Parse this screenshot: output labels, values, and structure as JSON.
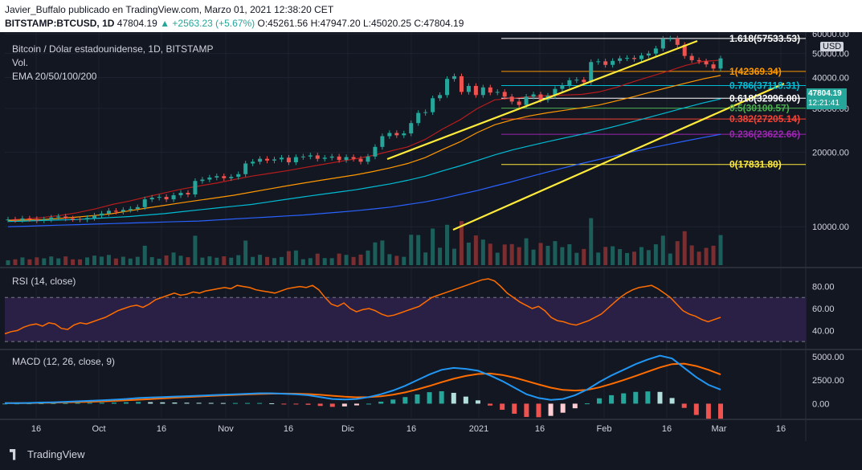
{
  "header": {
    "publisher_line": "Javier_Buffalo publicado en TradingView.com, Marzo 01, 2021 12:38:20 CET",
    "symbol": "BITSTAMP:BTCUSD, 1D",
    "price": "47804.19",
    "change": "▲ +2563.23 (+5.67%)",
    "ohlc": "O:45261.56 H:47947.20 L:45020.25 C:47804.19"
  },
  "legend": {
    "title": "Bitcoin / Dólar estadounidense, 1D, BITSTAMP",
    "vol": "Vol.",
    "ema": "EMA 20/50/100/200",
    "rsi": "RSI (14, close)",
    "macd": "MACD (12, 26, close, 9)"
  },
  "price_tag": {
    "value": "47804.19",
    "countdown": "12:21:41",
    "currency": "USD",
    "color": "#26a69a"
  },
  "footer": {
    "brand": "TradingView"
  },
  "chart_data": {
    "type": "line",
    "price_axis_ticks": [
      60000,
      50000,
      40000,
      30000,
      20000,
      10000
    ],
    "price_axis_labels": [
      "60000.00",
      "50000.00",
      "40000.00",
      "30000.00",
      "20000.00",
      "10000.00"
    ],
    "ylim": [
      7000,
      61000
    ],
    "x_tick_labels": [
      "16",
      "Oct",
      "16",
      "Nov",
      "16",
      "Dic",
      "16",
      "2021",
      "16",
      "Feb",
      "16",
      "Mar",
      "16"
    ],
    "price_series": {
      "name": "BTCUSD",
      "values": [
        10700,
        10650,
        10800,
        10750,
        10600,
        10700,
        10900,
        11000,
        10800,
        10750,
        10700,
        10850,
        11100,
        11300,
        11600,
        11500,
        11700,
        11800,
        12000,
        12900,
        13100,
        13200,
        12900,
        13400,
        13700,
        13500,
        15300,
        15500,
        15800,
        16000,
        15700,
        15900,
        16300,
        18000,
        18300,
        18800,
        18500,
        18700,
        19000,
        18200,
        19100,
        19200,
        19400,
        18800,
        19000,
        19200,
        18600,
        19100,
        18800,
        18300,
        19200,
        21000,
        23200,
        23900,
        23400,
        23800,
        26200,
        28800,
        29000,
        33000,
        34000,
        39500,
        40500,
        35000,
        37000,
        34000,
        36500,
        34800,
        35000,
        33500,
        32000,
        31000,
        33500,
        34200,
        32500,
        33800,
        36000,
        37200,
        39000,
        39200,
        38300,
        46200,
        46500,
        45000,
        46700,
        47800,
        48000,
        47500,
        49100,
        50000,
        52400,
        57400,
        57500,
        54200,
        48900,
        47000,
        46500,
        45200,
        43500,
        47800
      ]
    },
    "ema_series": [
      {
        "period": "20",
        "color": "#b71c1c",
        "values": [
          10650,
          10750,
          10900,
          11100,
          11400,
          11800,
          12300,
          12700,
          13200,
          13700,
          14200,
          14600,
          15000,
          15500,
          16000,
          16400,
          16800,
          17300,
          17800,
          18300,
          18800,
          19400,
          20200,
          21000,
          22500,
          24800,
          27000,
          30000,
          32500,
          33000,
          33500,
          33800,
          34000,
          34200,
          35000,
          36500,
          38500,
          40500,
          42500,
          44800,
          46500,
          47000
        ]
      },
      {
        "period": "50",
        "color": "#ff9800",
        "values": [
          10600,
          10650,
          10700,
          10800,
          10950,
          11100,
          11300,
          11600,
          11900,
          12200,
          12500,
          12800,
          13100,
          13400,
          13800,
          14200,
          14600,
          15000,
          15400,
          15800,
          16200,
          16700,
          17300,
          18000,
          19000,
          20500,
          22000,
          24000,
          25800,
          27000,
          28000,
          28800,
          29500,
          30200,
          31000,
          32200,
          33500,
          35000,
          36500,
          38000,
          39500,
          40800
        ]
      },
      {
        "period": "100",
        "color": "#00bcd4",
        "values": [
          10500,
          10550,
          10600,
          10650,
          10700,
          10800,
          10900,
          11000,
          11150,
          11300,
          11500,
          11700,
          11900,
          12100,
          12300,
          12600,
          12900,
          13200,
          13500,
          13800,
          14100,
          14500,
          14900,
          15400,
          16000,
          16800,
          17600,
          18500,
          19500,
          20400,
          21200,
          22000,
          22800,
          23600,
          24500,
          25500,
          26600,
          27800,
          29000,
          30300,
          31600,
          32800
        ]
      },
      {
        "period": "200",
        "color": "#2962ff",
        "values": [
          10000,
          10050,
          10100,
          10150,
          10200,
          10250,
          10300,
          10350,
          10400,
          10450,
          10500,
          10550,
          10650,
          10750,
          10850,
          10950,
          11050,
          11150,
          11300,
          11450,
          11600,
          11800,
          12000,
          12300,
          12600,
          13000,
          13500,
          14000,
          14600,
          15200,
          15900,
          16600,
          17300,
          18000,
          18700,
          19400,
          20100,
          20800,
          21500,
          22200,
          22900,
          23600
        ]
      }
    ],
    "fibonacci_levels": [
      {
        "ratio": "1.618",
        "value": "57533.53",
        "label": "1.618(57533.53)",
        "price": 57533.53,
        "color": "#ffffff"
      },
      {
        "ratio": "1",
        "value": "42369.34",
        "label": "1(42369.34)",
        "price": 42369.34,
        "color": "#ff9800"
      },
      {
        "ratio": "0.786",
        "value": "37118.31",
        "label": "0.786(37118.31)",
        "price": 37118.31,
        "color": "#00bcd4"
      },
      {
        "ratio": "0.618",
        "value": "32996.00",
        "label": "0.618(32996.00)",
        "price": 32996.0,
        "color": "#ffffff"
      },
      {
        "ratio": "0.5",
        "value": "30100.57",
        "label": "0.5(30100.57)",
        "price": 30100.57,
        "color": "#4caf50"
      },
      {
        "ratio": "0.382",
        "value": "27205.14",
        "label": "0.382(27205.14)",
        "price": 27205.14,
        "color": "#f44336"
      },
      {
        "ratio": "0.236",
        "value": "23622.66",
        "label": "0.236(23622.66)",
        "price": 23622.66,
        "color": "#9c27b0"
      },
      {
        "ratio": "0",
        "value": "17831.80",
        "label": "0(17831.80)",
        "price": 17831.8,
        "color": "#ffeb3b"
      }
    ],
    "channel_color": "#ffeb3b",
    "rsi": {
      "ticks": [
        "80.00",
        "60.00",
        "40.00"
      ],
      "ylim": [
        25,
        95
      ],
      "bands": [
        70,
        30
      ],
      "color": "#ff6d00",
      "values": [
        37,
        39,
        40,
        43,
        45,
        46,
        44,
        47,
        46,
        42,
        41,
        45,
        47,
        46,
        48,
        50,
        52,
        55,
        58,
        60,
        62,
        63,
        61,
        64,
        68,
        70,
        72,
        74,
        72,
        73,
        75,
        74,
        76,
        77,
        78,
        79,
        78,
        81,
        80,
        79,
        77,
        76,
        75,
        74,
        76,
        78,
        79,
        80,
        79,
        81,
        77,
        70,
        64,
        62,
        65,
        60,
        57,
        59,
        60,
        58,
        55,
        53,
        54,
        56,
        58,
        60,
        62,
        66,
        70,
        72,
        74,
        76,
        78,
        80,
        82,
        84,
        86,
        87,
        85,
        80,
        74,
        70,
        66,
        63,
        60,
        62,
        58,
        52,
        49,
        48,
        46,
        45,
        47,
        49,
        52,
        55,
        60,
        65,
        70,
        74,
        77,
        79,
        80,
        81,
        78,
        74,
        70,
        64,
        58,
        55,
        53,
        50,
        48,
        50,
        52
      ]
    },
    "macd": {
      "ticks": [
        "5000.00",
        "2500.00",
        "0.00"
      ],
      "ylim": [
        -1500,
        5500
      ],
      "macd_color": "#2196f3",
      "signal_color": "#ff6d00",
      "macd_values": [
        50,
        60,
        80,
        120,
        150,
        200,
        250,
        300,
        350,
        420,
        500,
        600,
        650,
        700,
        750,
        800,
        850,
        900,
        950,
        1000,
        1050,
        1100,
        1100,
        1050,
        1000,
        900,
        700,
        500,
        450,
        500,
        700,
        1000,
        1400,
        1900,
        2500,
        3100,
        3600,
        3800,
        3700,
        3500,
        3000,
        2400,
        1700,
        1000,
        600,
        400,
        500,
        900,
        1500,
        2300,
        3000,
        3600,
        4200,
        4700,
        5100,
        4800,
        3800,
        2800,
        2000,
        1500
      ],
      "signal_values": [
        50,
        55,
        65,
        85,
        105,
        135,
        165,
        200,
        240,
        290,
        350,
        420,
        490,
        560,
        630,
        700,
        760,
        820,
        880,
        930,
        980,
        1030,
        1060,
        1070,
        1060,
        1020,
        940,
        840,
        740,
        680,
        700,
        790,
        960,
        1200,
        1520,
        1880,
        2280,
        2650,
        2950,
        3150,
        3200,
        3050,
        2770,
        2410,
        2040,
        1700,
        1460,
        1390,
        1470,
        1730,
        2100,
        2500,
        2950,
        3400,
        3850,
        4200,
        4250,
        4000,
        3600,
        3100
      ],
      "hist_values": [
        10,
        20,
        30,
        40,
        50,
        60,
        80,
        90,
        100,
        120,
        150,
        180,
        160,
        140,
        120,
        100,
        90,
        80,
        70,
        70,
        70,
        70,
        40,
        -20,
        -60,
        -120,
        -240,
        -340,
        -290,
        -180,
        0,
        210,
        440,
        700,
        980,
        1220,
        1320,
        1150,
        750,
        350,
        -200,
        -650,
        -1070,
        -1410,
        -1440,
        -1300,
        -960,
        -490,
        30,
        570,
        900,
        1100,
        1250,
        1300,
        1250,
        600,
        -450,
        -1200,
        -1600,
        -1600
      ]
    }
  }
}
